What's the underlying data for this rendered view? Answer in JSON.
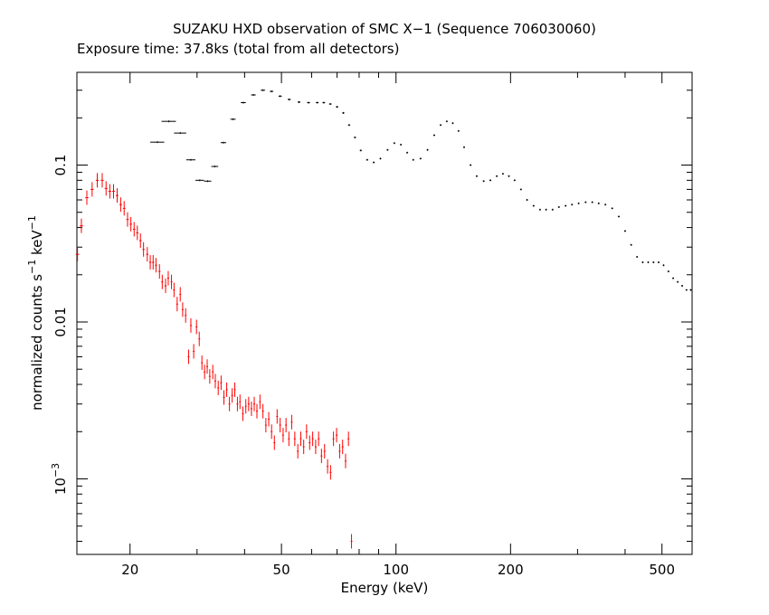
{
  "chart_data": {
    "type": "scatter",
    "title": "SUZAKU HXD observation of SMC X−1 (Sequence 706030060)",
    "subtitle": "Exposure time: 37.8ks (total from all detectors)",
    "xlabel": "Energy (keV)",
    "ylabel": {
      "prefix": "normalized counts s",
      "sup1": "−1",
      "mid": " keV",
      "sup2": "−1"
    },
    "xscale": "log",
    "yscale": "log",
    "xlim": [
      14.5,
      600
    ],
    "ylim": [
      0.00033,
      0.39
    ],
    "x_ticks": [
      {
        "value": 20,
        "label": "20"
      },
      {
        "value": 50,
        "label": "50"
      },
      {
        "value": 100,
        "label": "100"
      },
      {
        "value": 200,
        "label": "200"
      },
      {
        "value": 500,
        "label": "500"
      }
    ],
    "y_ticks": [
      {
        "value": 0.1,
        "label": "0.1"
      },
      {
        "value": 0.01,
        "label": "0.01"
      },
      {
        "value": 0.001,
        "label": "10",
        "exp": "−3"
      }
    ],
    "series": [
      {
        "color": "#000000",
        "points": [
          [
            23.6,
            0.14,
            1.0
          ],
          [
            25.3,
            0.19,
            1.1
          ],
          [
            27.1,
            0.16,
            1.0
          ],
          [
            28.9,
            0.108,
            0.8
          ],
          [
            30.5,
            0.08,
            0.8
          ],
          [
            32.0,
            0.079,
            0.7
          ],
          [
            33.4,
            0.098,
            0.7
          ],
          [
            35.2,
            0.139,
            0.6
          ],
          [
            37.3,
            0.196,
            0.6
          ],
          [
            39.7,
            0.25,
            0.6
          ],
          [
            42.2,
            0.28,
            0.6
          ],
          [
            44.7,
            0.3,
            0.6
          ],
          [
            47.1,
            0.295,
            0.5
          ],
          [
            49.6,
            0.275,
            0.5
          ],
          [
            52.4,
            0.262,
            0.5
          ],
          [
            55.6,
            0.252,
            0.5
          ],
          [
            58.9,
            0.25,
            0.5
          ],
          [
            62.1,
            0.25,
            0.5
          ],
          [
            64.6,
            0.25,
            0.5
          ],
          [
            67.2,
            0.245,
            0.5
          ],
          [
            70.0,
            0.235,
            0.5
          ],
          [
            72.7,
            0.215,
            0.5
          ],
          [
            75.3,
            0.18,
            0.5
          ],
          [
            78.0,
            0.15,
            0.5
          ],
          [
            80.8,
            0.124,
            0.5
          ],
          [
            84.0,
            0.108,
            0.5
          ],
          [
            87.4,
            0.104,
            0.5
          ],
          [
            91.0,
            0.11,
            0.5
          ],
          [
            95.0,
            0.125,
            0.5
          ],
          [
            99.0,
            0.138,
            0.5
          ],
          [
            103,
            0.135,
            0.5
          ],
          [
            107,
            0.12,
            0.5
          ],
          [
            111,
            0.108,
            0.5
          ],
          [
            116,
            0.11,
            0.5
          ],
          [
            121,
            0.125,
            0.5
          ],
          [
            126,
            0.155,
            0.5
          ],
          [
            131,
            0.18,
            0.5
          ],
          [
            136,
            0.19,
            0.5
          ],
          [
            141,
            0.185,
            0.5
          ],
          [
            146,
            0.165,
            0.5
          ],
          [
            151,
            0.13,
            0.5
          ],
          [
            157,
            0.1,
            0.5
          ],
          [
            163,
            0.085,
            0.5
          ],
          [
            170,
            0.079,
            0.5
          ],
          [
            177,
            0.08,
            0.5
          ],
          [
            184,
            0.085,
            0.5
          ],
          [
            191,
            0.088,
            0.5
          ],
          [
            198,
            0.085,
            0.5
          ],
          [
            205,
            0.08,
            0.5
          ],
          [
            213,
            0.07,
            0.5
          ],
          [
            221,
            0.06,
            0.5
          ],
          [
            230,
            0.055,
            0.5
          ],
          [
            239,
            0.052,
            0.5
          ],
          [
            248,
            0.052,
            0.5
          ],
          [
            258,
            0.052,
            0.5
          ],
          [
            268,
            0.054,
            0.5
          ],
          [
            279,
            0.055,
            0.5
          ],
          [
            290,
            0.056,
            0.5
          ],
          [
            302,
            0.057,
            0.5
          ],
          [
            315,
            0.058,
            0.5
          ],
          [
            328,
            0.058,
            0.5
          ],
          [
            341,
            0.057,
            0.5
          ],
          [
            355,
            0.056,
            0.5
          ],
          [
            370,
            0.053,
            0.5
          ],
          [
            385,
            0.047,
            0.5
          ],
          [
            400,
            0.038,
            0.5
          ],
          [
            415,
            0.031,
            0.5
          ],
          [
            430,
            0.026,
            0.5
          ],
          [
            445,
            0.024,
            0.5
          ],
          [
            460,
            0.024,
            0.5
          ],
          [
            475,
            0.024,
            0.5
          ],
          [
            490,
            0.024,
            0.5
          ],
          [
            505,
            0.023,
            0.5
          ],
          [
            520,
            0.021,
            0.5
          ],
          [
            535,
            0.019,
            0.5
          ],
          [
            550,
            0.018,
            0.5
          ],
          [
            565,
            0.017,
            0.5
          ],
          [
            580,
            0.016,
            0.5
          ],
          [
            595,
            0.016,
            0.5
          ]
        ]
      },
      {
        "color": "#ff0000",
        "points": [
          [
            14.55,
            0.027,
            0.15
          ],
          [
            14.9,
            0.041,
            0.15
          ],
          [
            15.4,
            0.062,
            0.15
          ],
          [
            15.9,
            0.07,
            0.15
          ],
          [
            16.4,
            0.08,
            0.15
          ],
          [
            16.9,
            0.08,
            0.15
          ],
          [
            17.3,
            0.071,
            0.15
          ],
          [
            17.7,
            0.068,
            0.15
          ],
          [
            18.1,
            0.068,
            0.15
          ],
          [
            18.5,
            0.064,
            0.15
          ],
          [
            18.9,
            0.056,
            0.15
          ],
          [
            19.3,
            0.053,
            0.15
          ],
          [
            19.7,
            0.045,
            0.15
          ],
          [
            20.1,
            0.042,
            0.15
          ],
          [
            20.5,
            0.039,
            0.15
          ],
          [
            20.9,
            0.037,
            0.15
          ],
          [
            21.3,
            0.033,
            0.15
          ],
          [
            21.7,
            0.029,
            0.15
          ],
          [
            22.2,
            0.027,
            0.15
          ],
          [
            22.6,
            0.024,
            0.15
          ],
          [
            23.0,
            0.024,
            0.15
          ],
          [
            23.4,
            0.023,
            0.15
          ],
          [
            23.9,
            0.021,
            0.15
          ],
          [
            24.3,
            0.018,
            0.15
          ],
          [
            24.8,
            0.017,
            0.15
          ],
          [
            25.2,
            0.019,
            0.15
          ],
          [
            25.7,
            0.018,
            0.15
          ],
          [
            26.1,
            0.016,
            0.15
          ],
          [
            26.6,
            0.013,
            0.15
          ],
          [
            27.1,
            0.015,
            0.15
          ],
          [
            27.5,
            0.012,
            0.15
          ],
          [
            28.0,
            0.011,
            0.15
          ],
          [
            28.5,
            0.006,
            0.15
          ],
          [
            28.9,
            0.0095,
            0.15
          ],
          [
            29.4,
            0.0065,
            0.15
          ],
          [
            29.9,
            0.0093,
            0.15
          ],
          [
            30.4,
            0.0078,
            0.15
          ],
          [
            30.9,
            0.0055,
            0.15
          ],
          [
            31.4,
            0.0048,
            0.15
          ],
          [
            31.9,
            0.0052,
            0.15
          ],
          [
            32.4,
            0.0045,
            0.15
          ],
          [
            33.0,
            0.0048,
            0.15
          ],
          [
            33.5,
            0.0042,
            0.15
          ],
          [
            34.1,
            0.0038,
            0.15
          ],
          [
            34.7,
            0.0041,
            0.15
          ],
          [
            35.3,
            0.0033,
            0.15
          ],
          [
            35.9,
            0.0037,
            0.15
          ],
          [
            36.5,
            0.003,
            0.15
          ],
          [
            37.1,
            0.0034,
            0.15
          ],
          [
            37.7,
            0.0037,
            0.15
          ],
          [
            38.3,
            0.003,
            0.15
          ],
          [
            38.9,
            0.0031,
            0.15
          ],
          [
            39.6,
            0.0026,
            0.15
          ],
          [
            40.3,
            0.0029,
            0.15
          ],
          [
            41.0,
            0.003,
            0.15
          ],
          [
            41.7,
            0.0028,
            0.15
          ],
          [
            42.4,
            0.003,
            0.15
          ],
          [
            43.1,
            0.0027,
            0.15
          ],
          [
            43.9,
            0.0031,
            0.15
          ],
          [
            44.7,
            0.0027,
            0.15
          ],
          [
            45.5,
            0.0022,
            0.15
          ],
          [
            46.3,
            0.0024,
            0.15
          ],
          [
            47.1,
            0.002,
            0.15
          ],
          [
            47.9,
            0.0017,
            0.15
          ],
          [
            48.7,
            0.0025,
            0.15
          ],
          [
            49.6,
            0.0022,
            0.15
          ],
          [
            50.5,
            0.0019,
            0.15
          ],
          [
            51.4,
            0.0022,
            0.15
          ],
          [
            52.3,
            0.0018,
            0.15
          ],
          [
            53.2,
            0.0023,
            0.15
          ],
          [
            54.2,
            0.0018,
            0.15
          ],
          [
            55.2,
            0.0015,
            0.15
          ],
          [
            56.2,
            0.0018,
            0.15
          ],
          [
            57.2,
            0.0016,
            0.15
          ],
          [
            58.2,
            0.002,
            0.15
          ],
          [
            59.3,
            0.0017,
            0.15
          ],
          [
            60.4,
            0.0018,
            0.15
          ],
          [
            61.5,
            0.0016,
            0.15
          ],
          [
            62.6,
            0.0018,
            0.15
          ],
          [
            63.7,
            0.0014,
            0.15
          ],
          [
            64.9,
            0.0015,
            0.15
          ],
          [
            66.1,
            0.0012,
            0.15
          ],
          [
            67.3,
            0.0011,
            0.15
          ],
          [
            68.5,
            0.0018,
            0.15
          ],
          [
            69.8,
            0.0019,
            0.15
          ],
          [
            71.1,
            0.0015,
            0.15
          ],
          [
            72.4,
            0.0016,
            0.15
          ],
          [
            73.7,
            0.0013,
            0.15
          ],
          [
            75.0,
            0.0018,
            0.15
          ],
          [
            76.4,
            0.0004,
            0.15
          ]
        ]
      }
    ]
  }
}
